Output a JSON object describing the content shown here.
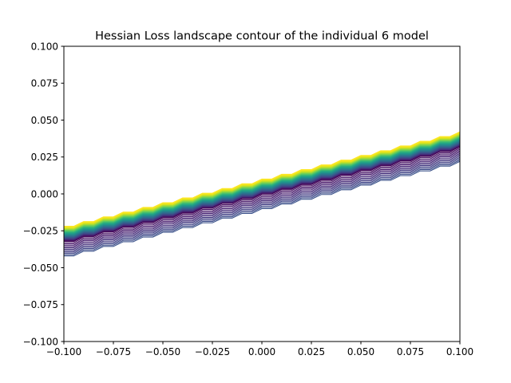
{
  "chart_data": {
    "type": "contour",
    "title": "Hessian Loss landscape contour of the individual 6 model",
    "xlabel": "",
    "ylabel": "",
    "xlim": [
      -0.1,
      0.1
    ],
    "ylim": [
      -0.1,
      0.1
    ],
    "xticks": [
      "−0.100",
      "−0.075",
      "−0.050",
      "−0.025",
      "0.000",
      "0.025",
      "0.050",
      "0.075",
      "0.100"
    ],
    "yticks": [
      "0.100",
      "0.075",
      "0.050",
      "0.025",
      "0.000",
      "−0.025",
      "−0.050",
      "−0.075",
      "−0.100"
    ],
    "grid": false,
    "legend": "none",
    "colormap": "viridis",
    "levels": 26,
    "band": {
      "slope": 0.32,
      "upper_offset_range": [
        0.0,
        0.01
      ],
      "lower_offset_range": [
        -0.01,
        0.0
      ],
      "grid_step": 0.01
    }
  }
}
